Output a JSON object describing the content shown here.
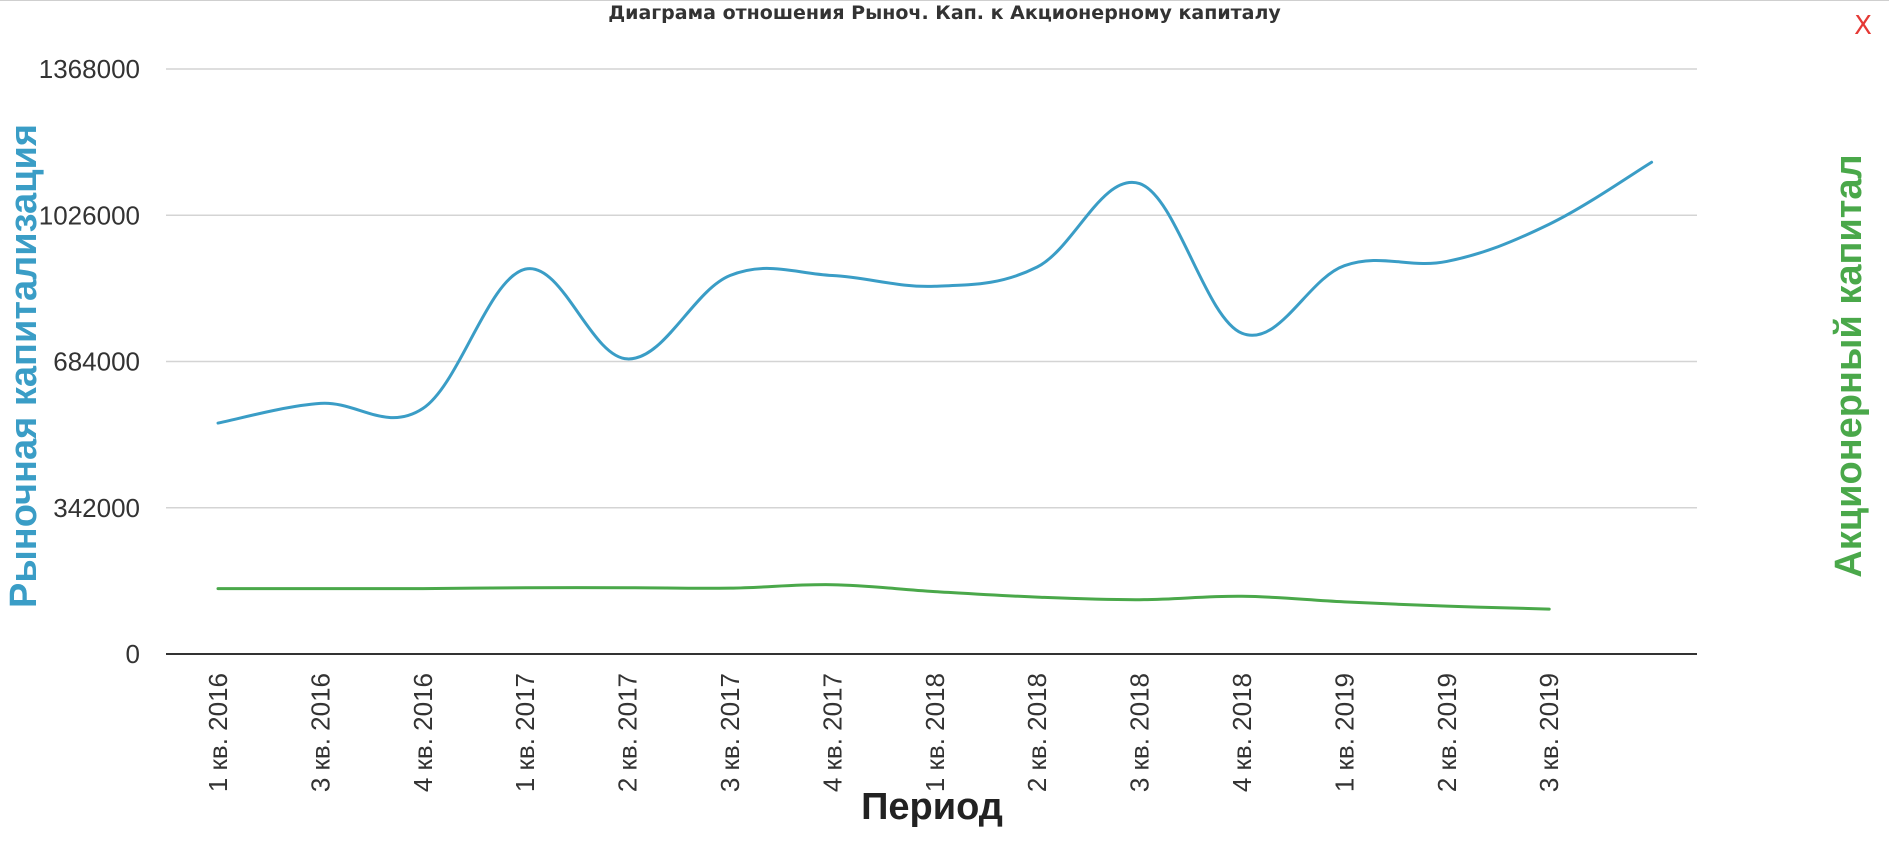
{
  "window": {
    "close_label": "X"
  },
  "colors": {
    "market_cap": "#3a9dc6",
    "equity": "#4aa84a",
    "grid": "#d4d4d4",
    "axis": "#333333",
    "tick_text": "#333333",
    "close": "#e53935"
  },
  "chart_data": {
    "type": "line",
    "title": "Диаграма отношения Рыноч. Кап. к Акционерному капиталу",
    "xlabel": "Период",
    "ylabel_left": "Рыночная капитализация",
    "ylabel_right": "Акционерный капитал",
    "ylim": [
      0,
      1368000
    ],
    "yticks": [
      0,
      342000,
      684000,
      1026000,
      1368000
    ],
    "categories": [
      "1 кв. 2016",
      "3 кв. 2016",
      "4 кв. 2016",
      "1 кв. 2017",
      "2 кв. 2017",
      "3 кв. 2017",
      "4 кв. 2017",
      "1 кв. 2018",
      "2 кв. 2018",
      "3 кв. 2018",
      "4 кв. 2018",
      "1 кв. 2019",
      "2 кв. 2019",
      "3 кв. 2019",
      ""
    ],
    "series": [
      {
        "name": "Рыночная капитализация",
        "color": "#3a9dc6",
        "values": [
          540000,
          586000,
          574000,
          900000,
          690000,
          885000,
          885000,
          860000,
          905000,
          1100000,
          750000,
          908000,
          918000,
          1005000,
          1150000
        ]
      },
      {
        "name": "Акционерный капитал",
        "color": "#4aa84a",
        "values": [
          153000,
          153000,
          153000,
          155000,
          155000,
          154000,
          162000,
          146000,
          133000,
          127000,
          135000,
          122000,
          112000,
          105000,
          null
        ]
      }
    ],
    "grid": true,
    "legend": "none"
  }
}
